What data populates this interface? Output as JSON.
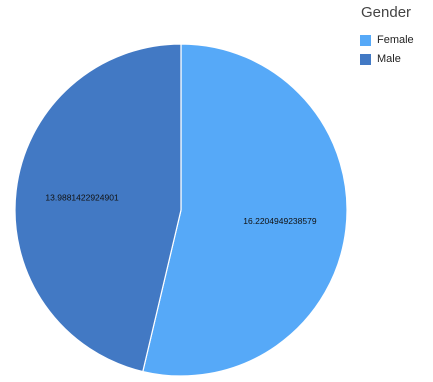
{
  "chart_data": {
    "type": "pie",
    "legend_title": "Gender",
    "legend_position": "top-right",
    "slices": [
      {
        "label": "Female",
        "value": 16.2204949238579,
        "value_label": "16.2204949238579",
        "color": "#56a9f8"
      },
      {
        "label": "Male",
        "value": 13.9881422924901,
        "value_label": "13.9881422924901",
        "color": "#4279c4"
      }
    ],
    "start_angle_deg": 0,
    "direction": "clockwise",
    "slice_stroke_color": "#ffffff"
  }
}
